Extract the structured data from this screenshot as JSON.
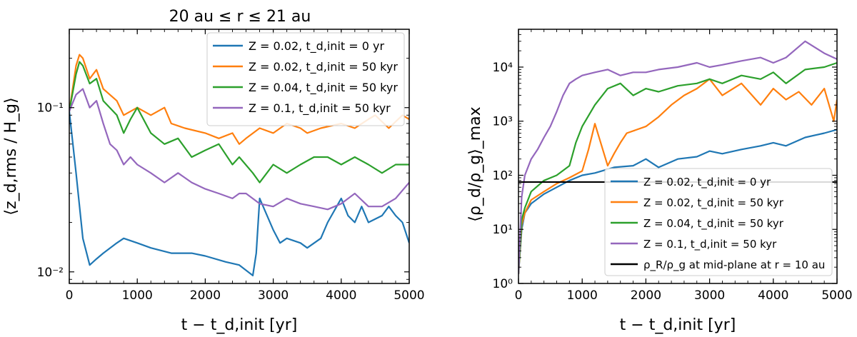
{
  "chart_data": [
    {
      "type": "line",
      "title": "20 au ≤ r ≤ 21 au",
      "xlabel": "t − t_d,init [yr]",
      "ylabel": "⟨z_d,rms / H_g⟩",
      "xlim": [
        0,
        5000
      ],
      "ylim": [
        0.0085,
        0.3
      ],
      "yscale": "log",
      "x_ticks": [
        0,
        1000,
        2000,
        3000,
        4000,
        5000
      ],
      "x_tick_labels": [
        "0",
        "1000",
        "2000",
        "3000",
        "4000",
        "5000"
      ],
      "y_ticks": [
        0.01,
        0.1
      ],
      "y_tick_labels": [
        "10⁻²",
        "10⁻¹"
      ],
      "grid": false,
      "legend_position": "top-right",
      "series": [
        {
          "name": "Z = 0.02, t_d,init = 0 yr",
          "color": "#1f77b4",
          "x": [
            0,
            100,
            200,
            300,
            400,
            500,
            700,
            800,
            1000,
            1200,
            1500,
            1800,
            2000,
            2300,
            2500,
            2700,
            2750,
            2800,
            3000,
            3100,
            3200,
            3400,
            3500,
            3700,
            3800,
            4000,
            4100,
            4200,
            4300,
            4400,
            4600,
            4700,
            4800,
            4900,
            5000
          ],
          "y": [
            0.095,
            0.04,
            0.016,
            0.011,
            0.012,
            0.013,
            0.015,
            0.016,
            0.015,
            0.014,
            0.013,
            0.013,
            0.0125,
            0.0115,
            0.011,
            0.0095,
            0.013,
            0.028,
            0.018,
            0.015,
            0.016,
            0.015,
            0.014,
            0.016,
            0.02,
            0.028,
            0.022,
            0.02,
            0.025,
            0.02,
            0.022,
            0.025,
            0.022,
            0.02,
            0.015
          ]
        },
        {
          "name": "Z = 0.02, t_d,init = 50 kyr",
          "color": "#ff7f0e",
          "x": [
            0,
            100,
            150,
            200,
            300,
            400,
            500,
            700,
            800,
            1000,
            1200,
            1400,
            1500,
            1700,
            2000,
            2200,
            2400,
            2500,
            2600,
            2800,
            3000,
            3200,
            3400,
            3500,
            3700,
            4000,
            4200,
            4400,
            4500,
            4700,
            4900,
            5000
          ],
          "y": [
            0.095,
            0.18,
            0.21,
            0.2,
            0.15,
            0.17,
            0.13,
            0.11,
            0.09,
            0.1,
            0.09,
            0.1,
            0.08,
            0.075,
            0.07,
            0.065,
            0.07,
            0.06,
            0.065,
            0.075,
            0.07,
            0.08,
            0.075,
            0.07,
            0.075,
            0.08,
            0.075,
            0.085,
            0.09,
            0.075,
            0.09,
            0.085
          ]
        },
        {
          "name": "Z = 0.04, t_d,init = 50 kyr",
          "color": "#2ca02c",
          "x": [
            0,
            100,
            150,
            200,
            300,
            400,
            500,
            700,
            800,
            900,
            1000,
            1200,
            1400,
            1600,
            1800,
            2000,
            2200,
            2400,
            2500,
            2700,
            2800,
            3000,
            3200,
            3400,
            3600,
            3800,
            4000,
            4200,
            4400,
            4600,
            4800,
            5000
          ],
          "y": [
            0.095,
            0.16,
            0.19,
            0.18,
            0.14,
            0.15,
            0.11,
            0.09,
            0.07,
            0.085,
            0.1,
            0.07,
            0.06,
            0.065,
            0.05,
            0.055,
            0.06,
            0.045,
            0.05,
            0.04,
            0.035,
            0.045,
            0.04,
            0.045,
            0.05,
            0.05,
            0.045,
            0.05,
            0.045,
            0.04,
            0.045,
            0.045
          ]
        },
        {
          "name": "Z = 0.1, t_d,init = 50 kyr",
          "color": "#9467bd",
          "x": [
            0,
            100,
            200,
            300,
            400,
            500,
            600,
            700,
            800,
            900,
            1000,
            1200,
            1400,
            1600,
            1800,
            2000,
            2200,
            2400,
            2500,
            2600,
            2800,
            3000,
            3200,
            3400,
            3600,
            3800,
            4000,
            4200,
            4400,
            4600,
            4800,
            5000
          ],
          "y": [
            0.095,
            0.12,
            0.13,
            0.1,
            0.11,
            0.08,
            0.06,
            0.055,
            0.045,
            0.05,
            0.045,
            0.04,
            0.035,
            0.04,
            0.035,
            0.032,
            0.03,
            0.028,
            0.03,
            0.03,
            0.026,
            0.025,
            0.028,
            0.026,
            0.025,
            0.024,
            0.026,
            0.03,
            0.025,
            0.025,
            0.028,
            0.035
          ]
        }
      ]
    },
    {
      "type": "line",
      "title": "",
      "xlabel": "t − t_d,init [yr]",
      "ylabel": "⟨ρ_d/ρ_g⟩_max",
      "xlim": [
        0,
        5000
      ],
      "ylim": [
        1,
        50000
      ],
      "yscale": "log",
      "x_ticks": [
        0,
        1000,
        2000,
        3000,
        4000,
        5000
      ],
      "x_tick_labels": [
        "0",
        "1000",
        "2000",
        "3000",
        "4000",
        "5000"
      ],
      "y_ticks": [
        1,
        10,
        100,
        1000,
        10000
      ],
      "y_tick_labels": [
        "10⁰",
        "10¹",
        "10²",
        "10³",
        "10⁴"
      ],
      "grid": false,
      "legend_position": "center-right",
      "hline": {
        "name": "ρ_R/ρ_g at mid-plane at r = 10 au",
        "y": 75,
        "color": "#000000"
      },
      "series": [
        {
          "name": "Z = 0.02, t_d,init = 0 yr",
          "color": "#1f77b4",
          "x": [
            0,
            50,
            100,
            200,
            400,
            600,
            800,
            1000,
            1200,
            1500,
            1800,
            2000,
            2200,
            2500,
            2800,
            3000,
            3200,
            3500,
            3800,
            4000,
            4200,
            4500,
            4800,
            5000
          ],
          "y": [
            1.5,
            10,
            20,
            30,
            45,
            60,
            80,
            100,
            110,
            140,
            150,
            200,
            140,
            200,
            220,
            280,
            250,
            300,
            350,
            400,
            350,
            500,
            600,
            700
          ]
        },
        {
          "name": "Z = 0.02, t_d,init = 50 kyr",
          "color": "#ff7f0e",
          "x": [
            0,
            50,
            100,
            200,
            400,
            600,
            800,
            1000,
            1100,
            1200,
            1400,
            1500,
            1600,
            1700,
            2000,
            2200,
            2400,
            2600,
            2800,
            3000,
            3200,
            3500,
            3800,
            4000,
            4200,
            4400,
            4600,
            4800,
            4950,
            5000
          ],
          "y": [
            1.5,
            12,
            20,
            35,
            50,
            70,
            90,
            120,
            300,
            900,
            150,
            250,
            400,
            600,
            800,
            1200,
            2000,
            3000,
            4000,
            6000,
            3000,
            5000,
            2000,
            4000,
            2500,
            3500,
            2000,
            4000,
            1000,
            2500
          ]
        },
        {
          "name": "Z = 0.04, t_d,init = 50 kyr",
          "color": "#2ca02c",
          "x": [
            0,
            50,
            100,
            200,
            400,
            600,
            800,
            900,
            1000,
            1200,
            1400,
            1600,
            1800,
            2000,
            2200,
            2500,
            2800,
            3000,
            3200,
            3500,
            3800,
            4000,
            4200,
            4500,
            4800,
            5000
          ],
          "y": [
            1.5,
            15,
            25,
            50,
            80,
            100,
            150,
            400,
            800,
            2000,
            4000,
            5000,
            3000,
            4000,
            3500,
            4500,
            5000,
            6000,
            5000,
            7000,
            6000,
            8000,
            5000,
            9000,
            10000,
            12000
          ]
        },
        {
          "name": "Z = 0.1, t_d,init = 50 kyr",
          "color": "#9467bd",
          "x": [
            0,
            50,
            100,
            200,
            300,
            400,
            500,
            600,
            700,
            800,
            900,
            1000,
            1200,
            1400,
            1600,
            1800,
            2000,
            2200,
            2500,
            2800,
            3000,
            3200,
            3500,
            3800,
            4000,
            4200,
            4500,
            4800,
            5000
          ],
          "y": [
            1.5,
            40,
            100,
            200,
            300,
            500,
            800,
            1500,
            3000,
            5000,
            6000,
            7000,
            8000,
            9000,
            7000,
            8000,
            8000,
            9000,
            10000,
            12000,
            10000,
            11000,
            13000,
            15000,
            12000,
            15000,
            30000,
            18000,
            14000
          ]
        }
      ]
    }
  ]
}
